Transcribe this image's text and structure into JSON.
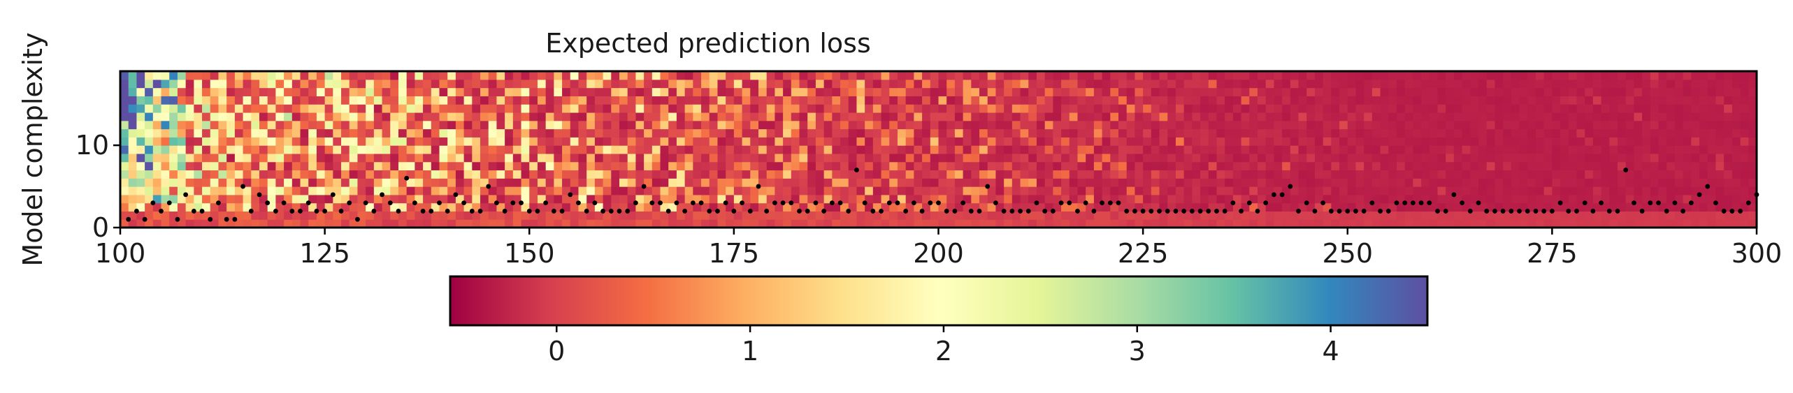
{
  "chart_data": {
    "type": "heatmap",
    "title": "Expected prediction loss",
    "xlabel": "",
    "ylabel": "Model complexity",
    "xlim": [
      100,
      300
    ],
    "ylim": [
      0,
      19
    ],
    "x_ticks": [
      "100",
      "125",
      "150",
      "175",
      "200",
      "225",
      "250",
      "275",
      "300"
    ],
    "y_ticks": [
      "0",
      "10"
    ],
    "colormap": "Spectral",
    "colorbar": {
      "orientation": "horizontal",
      "position": "bottom",
      "range": [
        -0.55,
        4.5
      ],
      "ticks": [
        "0",
        "1",
        "2",
        "3",
        "4"
      ]
    },
    "grid": false,
    "series": [
      {
        "kind": "minimum-markers",
        "marker_color": "#000000",
        "x": [
          101,
          102,
          103,
          104,
          105,
          106,
          107,
          108,
          109,
          110,
          111,
          112,
          113,
          114,
          115,
          116,
          117,
          118,
          119,
          120,
          121,
          122,
          123,
          124,
          125,
          126,
          127,
          128,
          129,
          130,
          131,
          132,
          133,
          134,
          135,
          136,
          137,
          138,
          139,
          140,
          141,
          142,
          143,
          144,
          145,
          146,
          147,
          148,
          149,
          150,
          151,
          152,
          153,
          154,
          155,
          156,
          157,
          158,
          159,
          160,
          161,
          162,
          163,
          164,
          165,
          166,
          167,
          168,
          169,
          170,
          171,
          172,
          173,
          174,
          175,
          176,
          177,
          178,
          179,
          180,
          181,
          182,
          183,
          184,
          185,
          186,
          187,
          188,
          189,
          190,
          191,
          192,
          193,
          194,
          195,
          196,
          197,
          198,
          199,
          200,
          201,
          202,
          203,
          204,
          205,
          206,
          207,
          208,
          209,
          210,
          211,
          212,
          213,
          214,
          215,
          216,
          217,
          218,
          219,
          220,
          221,
          222,
          223,
          224,
          225,
          226,
          227,
          228,
          229,
          230,
          231,
          232,
          233,
          234,
          235,
          236,
          237,
          238,
          239,
          240,
          241,
          242,
          243,
          244,
          245,
          246,
          247,
          248,
          249,
          250,
          251,
          252,
          253,
          254,
          255,
          256,
          257,
          258,
          259,
          260,
          261,
          262,
          263,
          264,
          265,
          266,
          267,
          268,
          269,
          270,
          271,
          272,
          273,
          274,
          275,
          276,
          277,
          278,
          279,
          280,
          281,
          282,
          283,
          284,
          285,
          286,
          287,
          288,
          289,
          290,
          291,
          292,
          293,
          294,
          295,
          296,
          297,
          298,
          299,
          300
        ],
        "y": [
          1,
          2,
          1,
          3,
          2,
          3,
          1,
          4,
          2,
          2,
          1,
          3,
          1,
          1,
          5,
          2,
          4,
          3,
          2,
          3,
          2,
          2,
          3,
          2,
          2,
          4,
          2,
          3,
          1,
          3,
          2,
          4,
          3,
          2,
          6,
          3,
          2,
          2,
          3,
          2,
          4,
          3,
          2,
          2,
          5,
          3,
          2,
          3,
          3,
          2,
          2,
          3,
          2,
          2,
          4,
          3,
          2,
          3,
          2,
          2,
          2,
          2,
          3,
          5,
          3,
          3,
          2,
          3,
          2,
          3,
          3,
          2,
          2,
          3,
          2,
          3,
          2,
          5,
          2,
          3,
          3,
          3,
          2,
          2,
          3,
          2,
          3,
          3,
          2,
          7,
          3,
          2,
          2,
          3,
          3,
          2,
          3,
          2,
          3,
          3,
          2,
          2,
          3,
          2,
          2,
          5,
          3,
          2,
          2,
          2,
          2,
          3,
          2,
          2,
          3,
          3,
          2,
          3,
          2,
          3,
          3,
          3,
          2,
          2,
          2,
          2,
          2,
          2,
          2,
          2,
          2,
          2,
          2,
          2,
          2,
          3,
          2,
          3,
          2,
          3,
          4,
          4,
          5,
          2,
          3,
          2,
          3,
          2,
          2,
          2,
          2,
          2,
          3,
          2,
          2,
          3,
          3,
          3,
          3,
          3,
          2,
          2,
          4,
          3,
          2,
          3,
          2,
          2,
          2,
          2,
          2,
          2,
          2,
          2,
          2,
          3,
          2,
          2,
          3,
          2,
          3,
          2,
          2,
          7,
          3,
          2,
          3,
          3,
          2,
          3,
          2,
          3,
          4,
          5,
          3,
          2,
          2,
          2,
          3,
          4
        ]
      }
    ]
  }
}
